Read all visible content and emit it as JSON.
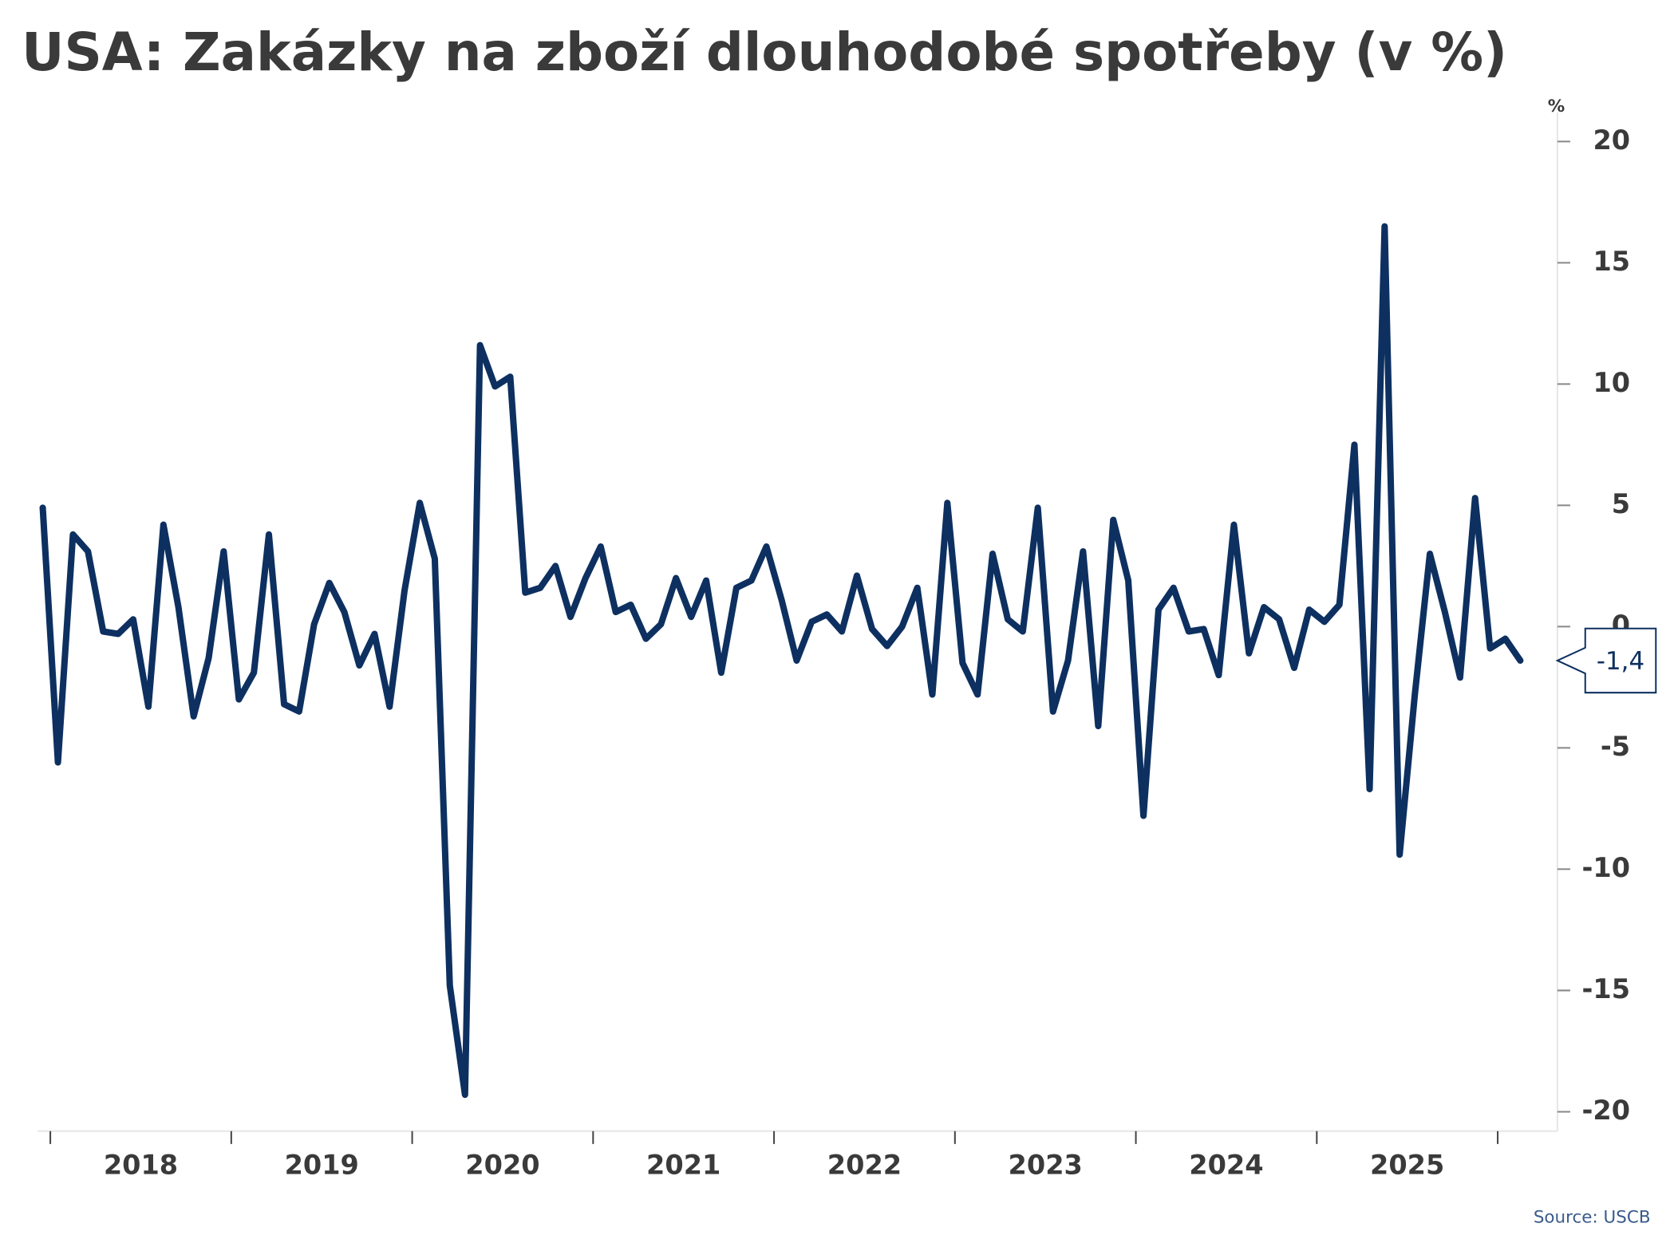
{
  "chart_data": {
    "type": "line",
    "title": "USA: Zakázky na zboží dlouhodobé spotřeby (v %)",
    "y_unit": "%",
    "source": "Source: USCB",
    "year_labels": [
      "2018",
      "2019",
      "2020",
      "2021",
      "2022",
      "2023",
      "2024",
      "2025"
    ],
    "x": [
      2017.958,
      2018.042,
      2018.125,
      2018.208,
      2018.292,
      2018.375,
      2018.458,
      2018.542,
      2018.625,
      2018.708,
      2018.792,
      2018.875,
      2018.958,
      2019.042,
      2019.125,
      2019.208,
      2019.292,
      2019.375,
      2019.458,
      2019.542,
      2019.625,
      2019.708,
      2019.792,
      2019.875,
      2019.958,
      2020.042,
      2020.125,
      2020.208,
      2020.292,
      2020.375,
      2020.458,
      2020.542,
      2020.625,
      2020.708,
      2020.792,
      2020.875,
      2020.958,
      2021.042,
      2021.125,
      2021.208,
      2021.292,
      2021.375,
      2021.458,
      2021.542,
      2021.625,
      2021.708,
      2021.792,
      2021.875,
      2021.958,
      2022.042,
      2022.125,
      2022.208,
      2022.292,
      2022.375,
      2022.458,
      2022.542,
      2022.625,
      2022.708,
      2022.792,
      2022.875,
      2022.958,
      2023.042,
      2023.125,
      2023.208,
      2023.292,
      2023.375,
      2023.458,
      2023.542,
      2023.625,
      2023.708,
      2023.792,
      2023.875,
      2023.958,
      2024.042,
      2024.125,
      2024.208,
      2024.292,
      2024.375,
      2024.458,
      2024.542,
      2024.625,
      2024.708,
      2024.792,
      2024.875,
      2024.958,
      2025.042,
      2025.125,
      2025.208,
      2025.292,
      2025.375,
      2025.458,
      2025.542,
      2025.625,
      2025.708,
      2025.792,
      2025.875,
      2025.958,
      2026.042,
      2026.125
    ],
    "series": [
      {
        "color": "#0d3060",
        "values": [
          4.9,
          -5.6,
          3.8,
          3.1,
          -0.2,
          -0.3,
          0.3,
          -3.3,
          4.2,
          0.8,
          -3.7,
          -1.3,
          3.1,
          -3.0,
          -1.9,
          3.8,
          -3.2,
          -3.5,
          0.1,
          1.8,
          0.6,
          -1.6,
          -0.3,
          -3.3,
          1.5,
          5.1,
          2.8,
          -14.8,
          -19.3,
          11.6,
          9.9,
          10.3,
          1.4,
          1.6,
          2.5,
          0.4,
          2.0,
          3.3,
          0.6,
          0.9,
          -0.5,
          0.1,
          2.0,
          0.4,
          1.9,
          -1.9,
          1.6,
          1.9,
          3.3,
          1.1,
          -1.4,
          0.2,
          0.5,
          -0.2,
          2.1,
          -0.1,
          -0.8,
          0.0,
          1.6,
          -2.8,
          5.1,
          -1.5,
          -2.8,
          3.0,
          0.3,
          -0.2,
          4.9,
          -3.5,
          -1.4,
          3.1,
          -4.1,
          4.4,
          1.9,
          -7.8,
          0.7,
          1.6,
          -0.2,
          -0.1,
          -2.0,
          4.2,
          -1.1,
          0.8,
          0.3,
          -1.7,
          0.7,
          0.2,
          0.9,
          7.5,
          -6.7,
          16.5,
          -9.4,
          -2.8,
          3.0,
          0.6,
          -2.1,
          5.3,
          -0.9,
          -0.5,
          -1.4
        ]
      }
    ],
    "end_label": {
      "value": -1.4,
      "label": "-1,4"
    },
    "xlim": [
      2017.93,
      2026.33
    ],
    "xticks": [
      2018,
      2019,
      2020,
      2021,
      2022,
      2023,
      2024,
      2025,
      2026
    ],
    "ylim": [
      -20.8,
      21.2
    ],
    "yticks": [
      20,
      15,
      10,
      5,
      0,
      -5,
      -10,
      -15,
      -20
    ],
    "grid": false
  }
}
